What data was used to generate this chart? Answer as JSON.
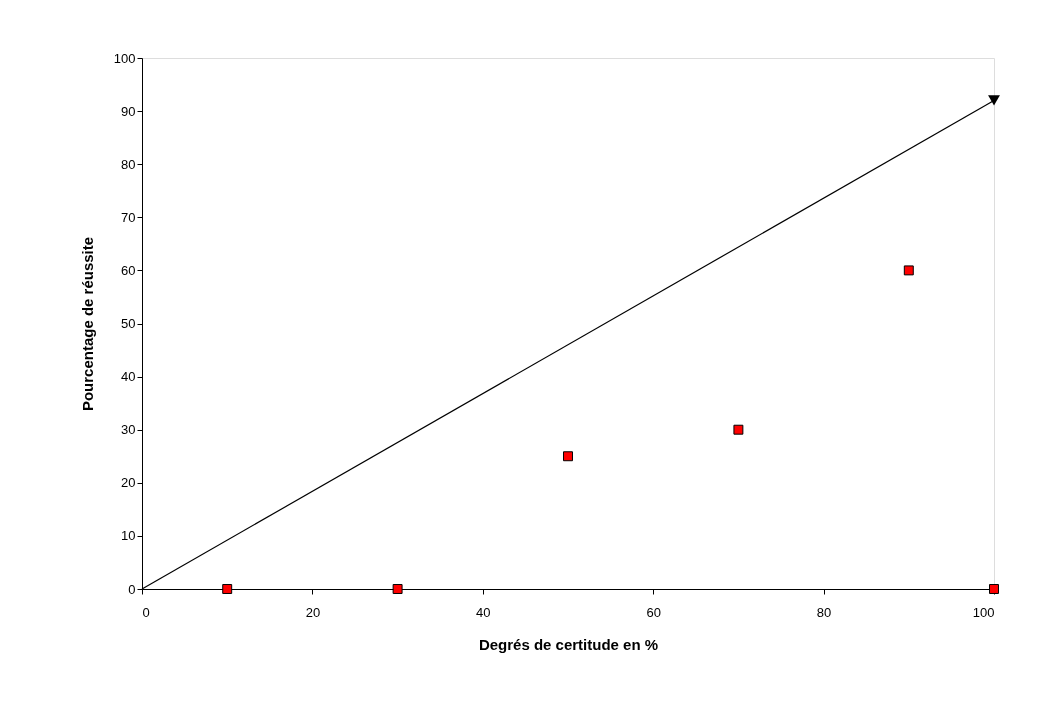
{
  "chart_data": {
    "type": "scatter",
    "xlabel": "Degrés de certitude en %",
    "ylabel": "Pourcentage de réussite",
    "xlim": [
      0,
      100
    ],
    "ylim": [
      0,
      100
    ],
    "xticks": [
      0,
      20,
      40,
      60,
      80,
      100
    ],
    "yticks": [
      0,
      10,
      20,
      30,
      40,
      50,
      60,
      70,
      80,
      90,
      100
    ],
    "grid": false,
    "marker": "square",
    "series": [
      {
        "type": "line",
        "marker": "triangle",
        "color": "#000000",
        "x": [
          0,
          100
        ],
        "values": [
          0,
          92
        ]
      },
      {
        "color": "#ff0000",
        "x": [
          10,
          30,
          50,
          70,
          90,
          100
        ],
        "values": [
          0,
          0,
          25,
          30,
          60,
          0
        ]
      }
    ]
  }
}
